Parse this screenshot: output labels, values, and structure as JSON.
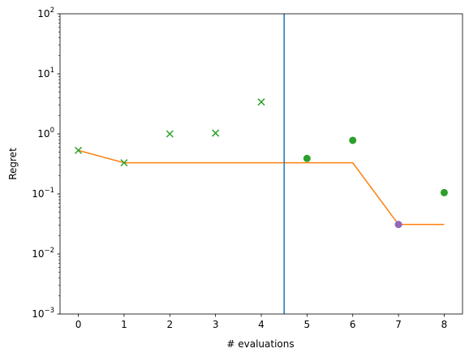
{
  "chart_data": {
    "type": "scatter",
    "title": "",
    "xlabel": "# evaluations",
    "ylabel": "Regret",
    "xlim": [
      -0.4,
      8.4
    ],
    "ylim": [
      0.001,
      100
    ],
    "yscale": "log",
    "grid": false,
    "x_ticks": [
      "0",
      "1",
      "2",
      "3",
      "4",
      "5",
      "6",
      "7",
      "8"
    ],
    "y_ticks": [
      {
        "value": 0.001,
        "base": "10",
        "exp": "−3"
      },
      {
        "value": 0.01,
        "base": "10",
        "exp": "−2"
      },
      {
        "value": 0.1,
        "base": "10",
        "exp": "−1"
      },
      {
        "value": 1,
        "base": "10",
        "exp": "0"
      },
      {
        "value": 10,
        "base": "10",
        "exp": "1"
      },
      {
        "value": 100,
        "base": "10",
        "exp": "2"
      }
    ],
    "vertical_line": {
      "x": 4.5,
      "color": "#1f77b4"
    },
    "series": [
      {
        "marker": "x",
        "color": "#2ca02c",
        "x": [
          0,
          1,
          2,
          3,
          4
        ],
        "y": [
          0.53,
          0.33,
          1.0,
          1.03,
          3.4
        ]
      },
      {
        "marker": "circle",
        "color": "#2ca02c",
        "x": [
          5,
          6,
          8
        ],
        "y": [
          0.39,
          0.78,
          0.105
        ]
      },
      {
        "marker": "circle",
        "color": "#9467bd",
        "x": [
          7
        ],
        "y": [
          0.031
        ]
      },
      {
        "type": "line",
        "color": "#ff7f0e",
        "x": [
          0,
          1,
          2,
          3,
          4,
          5,
          6,
          7,
          8
        ],
        "y": [
          0.53,
          0.33,
          0.33,
          0.33,
          0.33,
          0.33,
          0.33,
          0.031,
          0.031
        ]
      }
    ]
  }
}
